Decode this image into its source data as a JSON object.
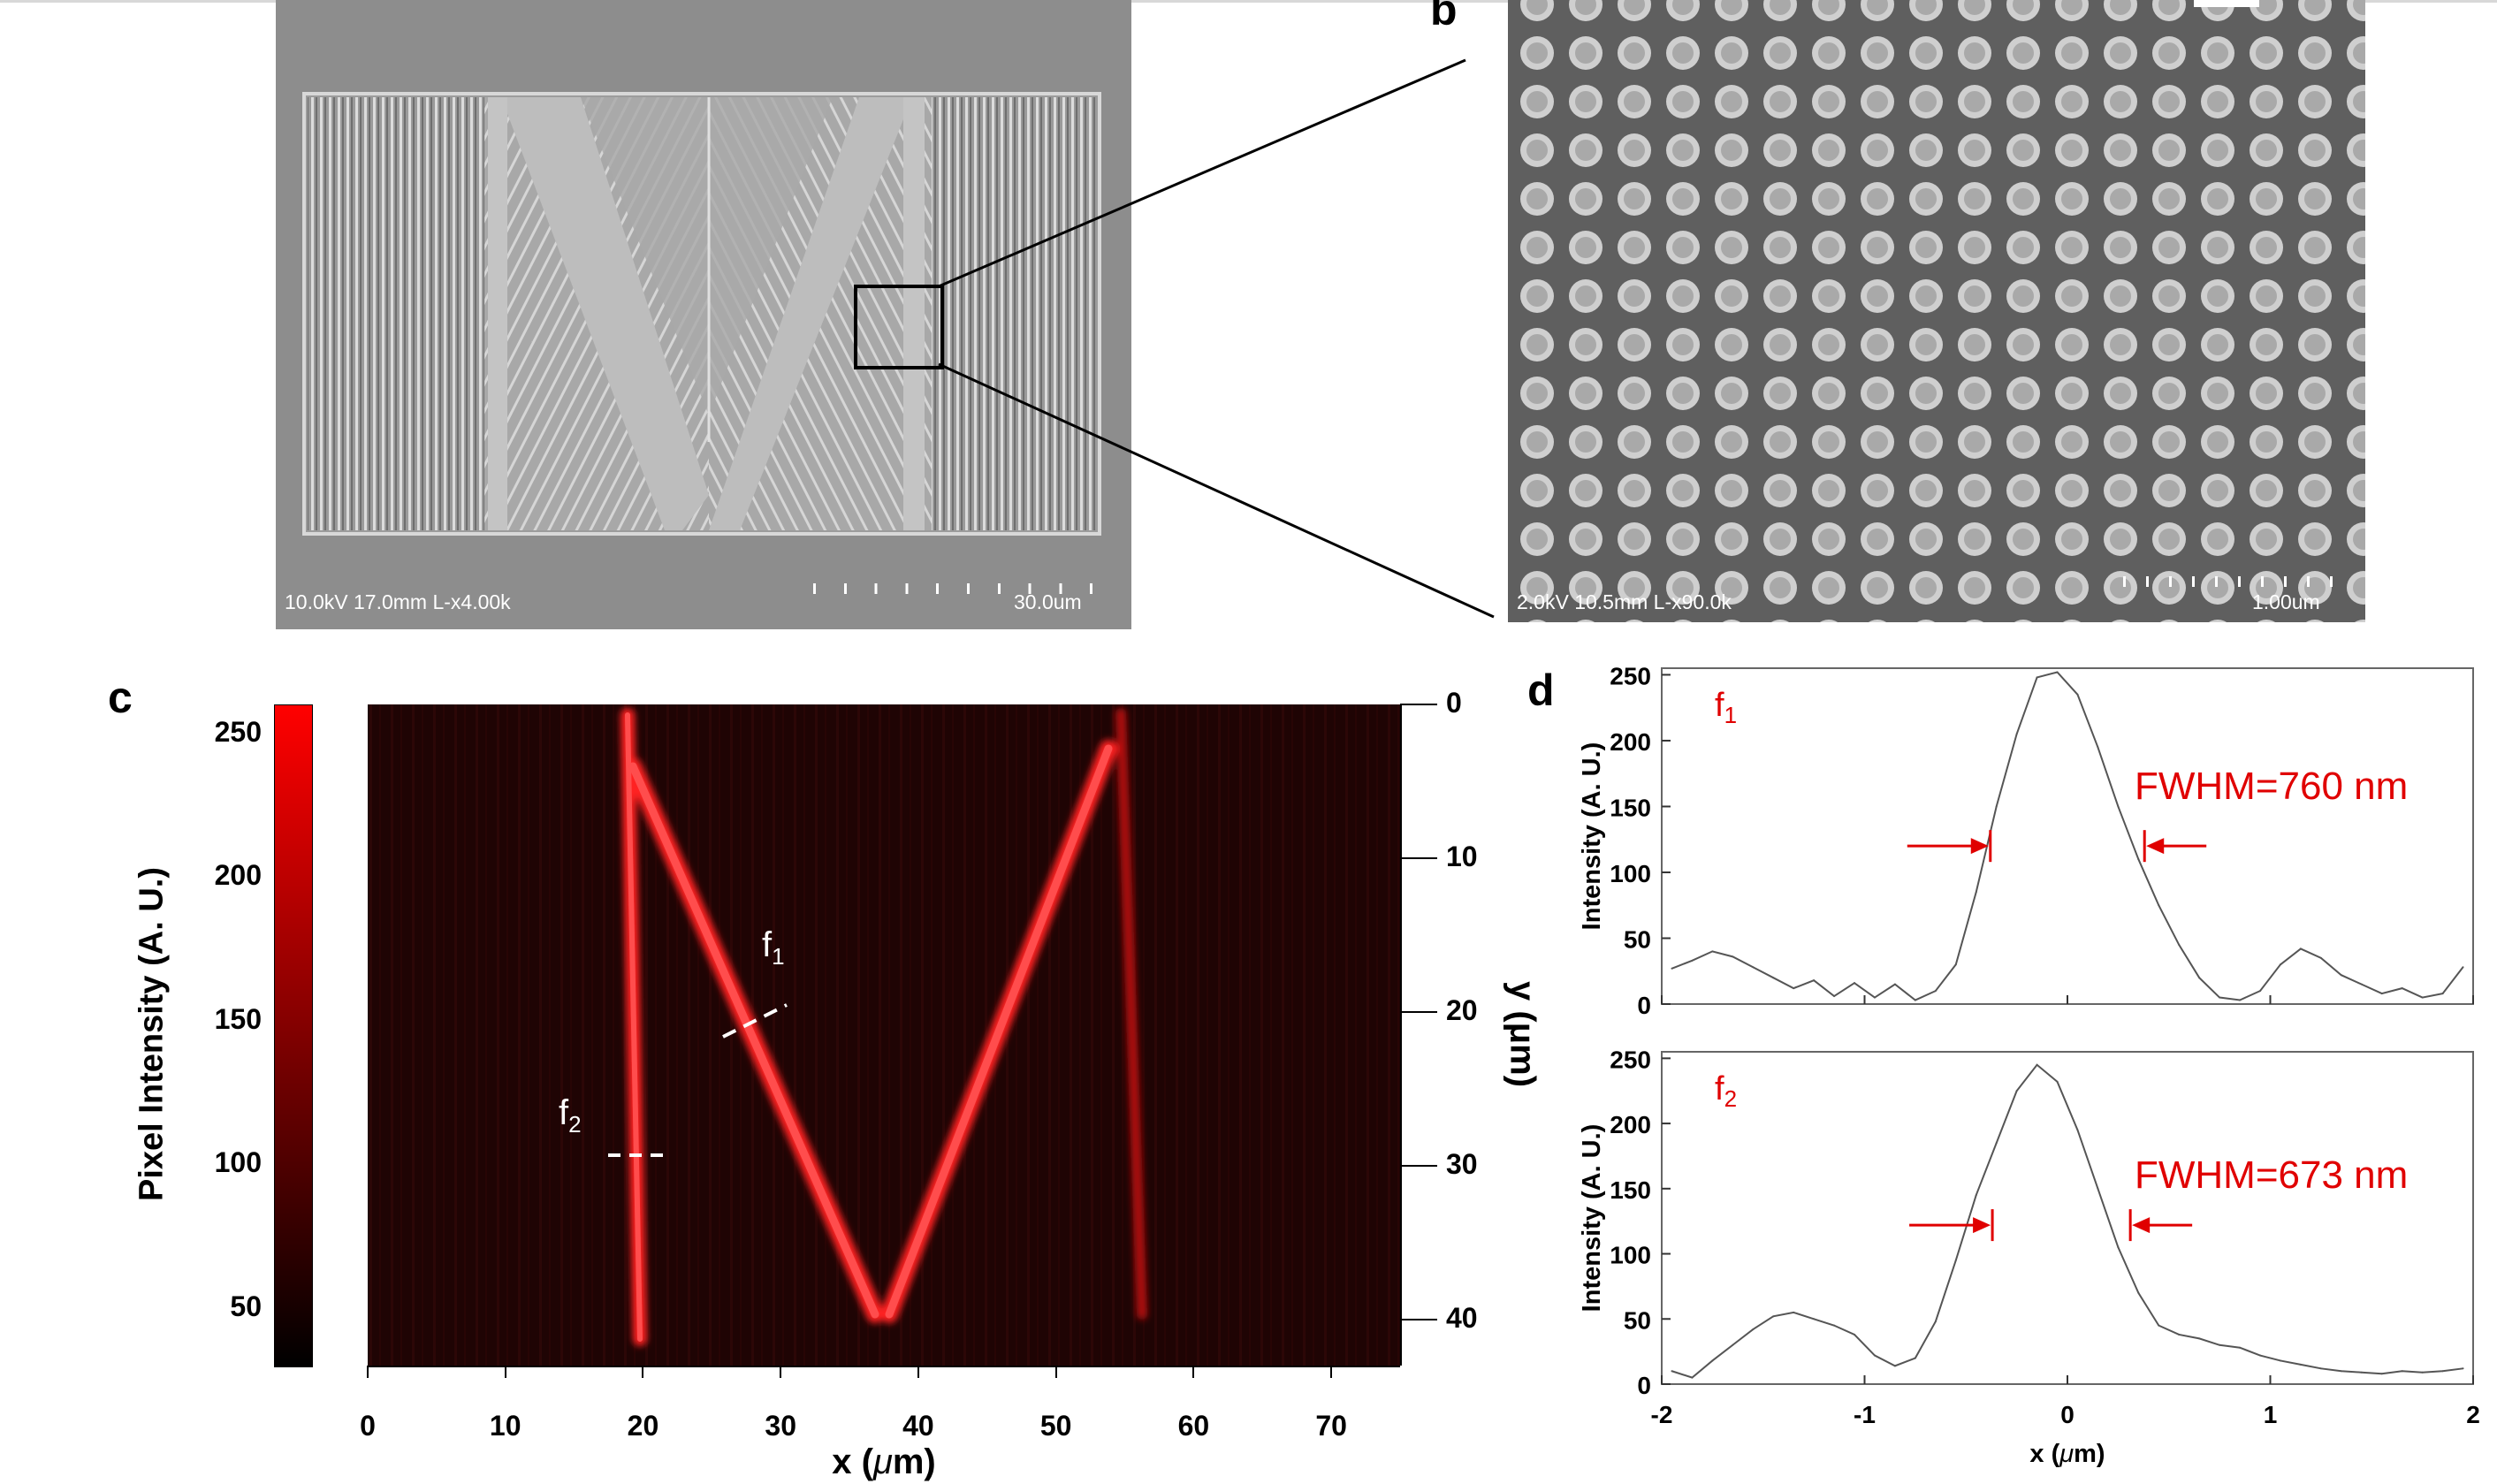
{
  "panel_labels": {
    "b": "b",
    "c": "c",
    "d": "d"
  },
  "sem_a": {
    "caption": "10.0kV 17.0mm L-x4.00k",
    "scale_label": "30.0um"
  },
  "sem_b": {
    "caption": "2.0kV 10.5mm L-x90.0k",
    "scale_label": "1.00um"
  },
  "panel_c": {
    "colorbar": {
      "label": "Pixel Intensity (A. U.)",
      "ticks": [
        "250",
        "200",
        "150",
        "100",
        "50"
      ],
      "tick_values": [
        250,
        200,
        150,
        100,
        50
      ],
      "range": [
        30,
        260
      ],
      "color_low": "#000000",
      "color_high": "#ff0000"
    },
    "x_label_main": "x (",
    "x_label_mu": "μ",
    "x_label_end": "m)",
    "x_ticks": [
      "0",
      "10",
      "20",
      "30",
      "40",
      "50",
      "60",
      "70"
    ],
    "x_tick_values": [
      0,
      10,
      20,
      30,
      40,
      50,
      60,
      70
    ],
    "x_range": [
      0,
      75
    ],
    "y_label": "y (μm)",
    "y_ticks": [
      "0",
      "10",
      "20",
      "30",
      "40"
    ],
    "y_tick_values": [
      0,
      10,
      20,
      30,
      40
    ],
    "y_range": [
      0,
      43
    ],
    "f1_label": "f",
    "f1_sub": "1",
    "f2_label": "f",
    "f2_sub": "2"
  },
  "chart_data": [
    {
      "type": "line",
      "panel": "d-top",
      "annotation_main": "f",
      "annotation_sub": "1",
      "fwhm_label": "FWHM=760 nm",
      "ylabel": "Intensity (A. U.)",
      "xlim": [
        -2,
        2
      ],
      "ylim": [
        0,
        255
      ],
      "yticks": [
        0,
        50,
        100,
        150,
        200,
        250
      ],
      "series": [
        {
          "x": [
            -1.95,
            -1.85,
            -1.75,
            -1.65,
            -1.55,
            -1.45,
            -1.35,
            -1.25,
            -1.15,
            -1.05,
            -0.95,
            -0.85,
            -0.75,
            -0.65,
            -0.55,
            -0.45,
            -0.35,
            -0.25,
            -0.15,
            -0.05,
            0.05,
            0.15,
            0.25,
            0.35,
            0.45,
            0.55,
            0.65,
            0.75,
            0.85,
            0.95,
            1.05,
            1.15,
            1.25,
            1.35,
            1.45,
            1.55,
            1.65,
            1.75,
            1.85,
            1.95
          ],
          "y": [
            27,
            33,
            40,
            36,
            28,
            20,
            12,
            18,
            6,
            16,
            5,
            15,
            3,
            10,
            30,
            85,
            150,
            205,
            248,
            252,
            235,
            195,
            150,
            110,
            75,
            45,
            20,
            5,
            3,
            10,
            30,
            42,
            35,
            22,
            15,
            8,
            12,
            5,
            8,
            28
          ]
        }
      ]
    },
    {
      "type": "line",
      "panel": "d-bottom",
      "annotation_main": "f",
      "annotation_sub": "2",
      "fwhm_label": "FWHM=673 nm",
      "ylabel": "Intensity (A. U.)",
      "xlabel_main": "x (",
      "xlabel_mu": "μ",
      "xlabel_end": "m)",
      "xlim": [
        -2,
        2
      ],
      "ylim": [
        0,
        255
      ],
      "xticks": [
        -2,
        -1,
        0,
        1,
        2
      ],
      "yticks": [
        0,
        50,
        100,
        150,
        200,
        250
      ],
      "series": [
        {
          "x": [
            -1.95,
            -1.85,
            -1.75,
            -1.65,
            -1.55,
            -1.45,
            -1.35,
            -1.25,
            -1.15,
            -1.05,
            -0.95,
            -0.85,
            -0.75,
            -0.65,
            -0.55,
            -0.45,
            -0.35,
            -0.25,
            -0.15,
            -0.05,
            0.05,
            0.15,
            0.25,
            0.35,
            0.45,
            0.55,
            0.65,
            0.75,
            0.85,
            0.95,
            1.05,
            1.15,
            1.25,
            1.35,
            1.45,
            1.55,
            1.65,
            1.75,
            1.85,
            1.95
          ],
          "y": [
            10,
            5,
            18,
            30,
            42,
            52,
            55,
            50,
            45,
            38,
            22,
            14,
            20,
            48,
            95,
            145,
            185,
            225,
            245,
            232,
            195,
            150,
            105,
            70,
            45,
            38,
            35,
            30,
            28,
            22,
            18,
            15,
            12,
            10,
            9,
            8,
            10,
            9,
            10,
            12
          ]
        }
      ]
    }
  ]
}
